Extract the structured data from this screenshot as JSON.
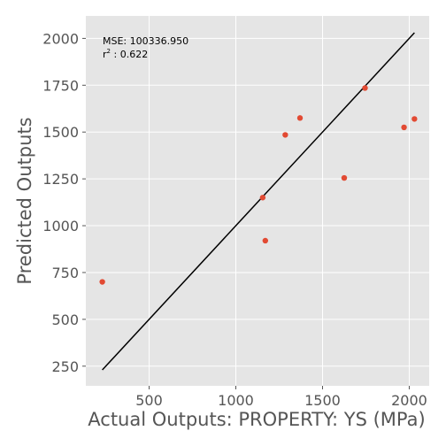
{
  "chart_data": {
    "type": "scatter",
    "xlabel": "Actual Outputs: PROPERTY: YS (MPa)",
    "ylabel": "Predicted Outputs",
    "xlim": [
      135,
      2115
    ],
    "ylim": [
      145,
      2120
    ],
    "xticks": [
      500,
      1000,
      1500,
      2000
    ],
    "yticks": [
      250,
      500,
      750,
      1000,
      1250,
      1500,
      1750,
      2000
    ],
    "grid": true,
    "points": [
      {
        "x": 230,
        "y": 700
      },
      {
        "x": 1155,
        "y": 1150
      },
      {
        "x": 1170,
        "y": 920
      },
      {
        "x": 1285,
        "y": 1485
      },
      {
        "x": 1370,
        "y": 1575
      },
      {
        "x": 1625,
        "y": 1255
      },
      {
        "x": 1745,
        "y": 1735
      },
      {
        "x": 1970,
        "y": 1525
      },
      {
        "x": 2030,
        "y": 1570
      }
    ],
    "fit_line": {
      "x": [
        230,
        2030
      ],
      "y": [
        230,
        2030
      ]
    },
    "annotations": {
      "mse_text": "MSE: 100336.950",
      "r2_prefix": "r",
      "r2_sup": "2",
      "r2_suffix": " : 0.622"
    },
    "colors": {
      "background": "#e5e5e5",
      "grid": "#ffffff",
      "point": "#e24a33",
      "line": "#000000"
    }
  }
}
